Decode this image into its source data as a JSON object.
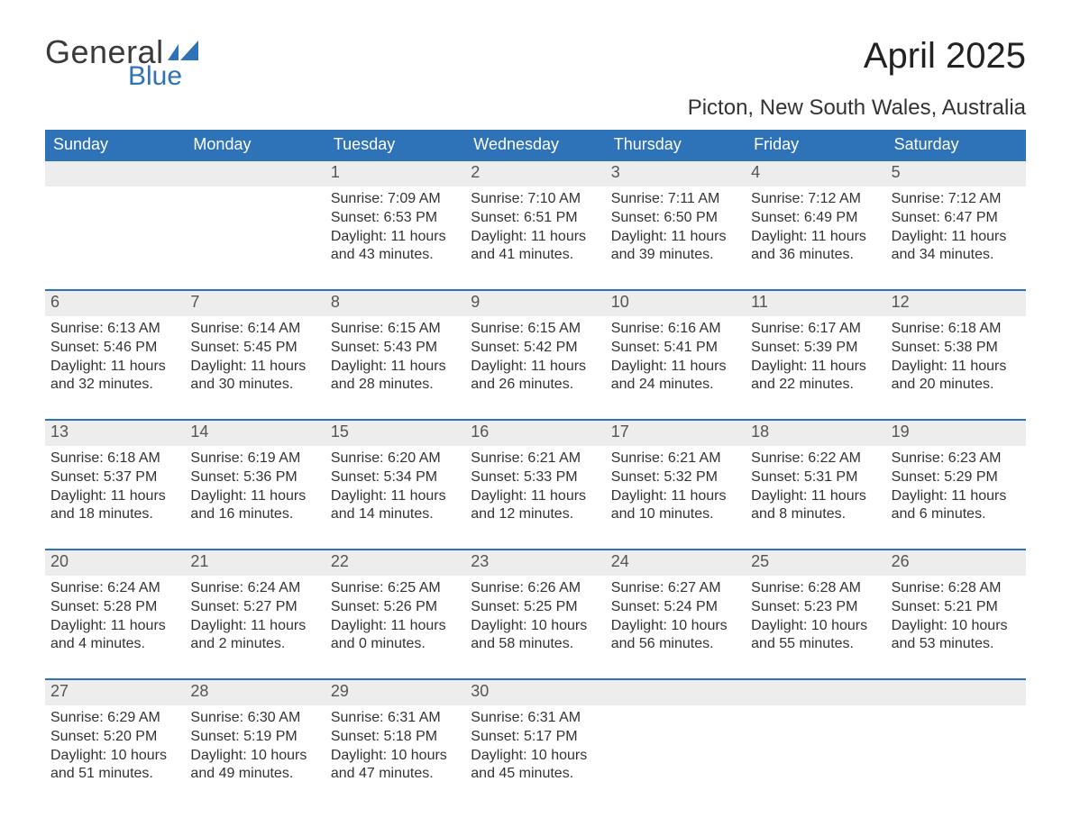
{
  "logo": {
    "text1": "General",
    "text2": "Blue",
    "color_general": "#3a3a3a",
    "color_blue": "#2e72b8"
  },
  "title": "April 2025",
  "subtitle": "Picton, New South Wales, Australia",
  "header_bg": "#2e72b8",
  "header_text_color": "#ffffff",
  "strip_bg": "#ededed",
  "strip_border": "#2e72b8",
  "day_names": [
    "Sunday",
    "Monday",
    "Tuesday",
    "Wednesday",
    "Thursday",
    "Friday",
    "Saturday"
  ],
  "weeks": [
    [
      null,
      null,
      {
        "date": "1",
        "sunrise": "7:09 AM",
        "sunset": "6:53 PM",
        "daylight": "11 hours and 43 minutes."
      },
      {
        "date": "2",
        "sunrise": "7:10 AM",
        "sunset": "6:51 PM",
        "daylight": "11 hours and 41 minutes."
      },
      {
        "date": "3",
        "sunrise": "7:11 AM",
        "sunset": "6:50 PM",
        "daylight": "11 hours and 39 minutes."
      },
      {
        "date": "4",
        "sunrise": "7:12 AM",
        "sunset": "6:49 PM",
        "daylight": "11 hours and 36 minutes."
      },
      {
        "date": "5",
        "sunrise": "7:12 AM",
        "sunset": "6:47 PM",
        "daylight": "11 hours and 34 minutes."
      }
    ],
    [
      {
        "date": "6",
        "sunrise": "6:13 AM",
        "sunset": "5:46 PM",
        "daylight": "11 hours and 32 minutes."
      },
      {
        "date": "7",
        "sunrise": "6:14 AM",
        "sunset": "5:45 PM",
        "daylight": "11 hours and 30 minutes."
      },
      {
        "date": "8",
        "sunrise": "6:15 AM",
        "sunset": "5:43 PM",
        "daylight": "11 hours and 28 minutes."
      },
      {
        "date": "9",
        "sunrise": "6:15 AM",
        "sunset": "5:42 PM",
        "daylight": "11 hours and 26 minutes."
      },
      {
        "date": "10",
        "sunrise": "6:16 AM",
        "sunset": "5:41 PM",
        "daylight": "11 hours and 24 minutes."
      },
      {
        "date": "11",
        "sunrise": "6:17 AM",
        "sunset": "5:39 PM",
        "daylight": "11 hours and 22 minutes."
      },
      {
        "date": "12",
        "sunrise": "6:18 AM",
        "sunset": "5:38 PM",
        "daylight": "11 hours and 20 minutes."
      }
    ],
    [
      {
        "date": "13",
        "sunrise": "6:18 AM",
        "sunset": "5:37 PM",
        "daylight": "11 hours and 18 minutes."
      },
      {
        "date": "14",
        "sunrise": "6:19 AM",
        "sunset": "5:36 PM",
        "daylight": "11 hours and 16 minutes."
      },
      {
        "date": "15",
        "sunrise": "6:20 AM",
        "sunset": "5:34 PM",
        "daylight": "11 hours and 14 minutes."
      },
      {
        "date": "16",
        "sunrise": "6:21 AM",
        "sunset": "5:33 PM",
        "daylight": "11 hours and 12 minutes."
      },
      {
        "date": "17",
        "sunrise": "6:21 AM",
        "sunset": "5:32 PM",
        "daylight": "11 hours and 10 minutes."
      },
      {
        "date": "18",
        "sunrise": "6:22 AM",
        "sunset": "5:31 PM",
        "daylight": "11 hours and 8 minutes."
      },
      {
        "date": "19",
        "sunrise": "6:23 AM",
        "sunset": "5:29 PM",
        "daylight": "11 hours and 6 minutes."
      }
    ],
    [
      {
        "date": "20",
        "sunrise": "6:24 AM",
        "sunset": "5:28 PM",
        "daylight": "11 hours and 4 minutes."
      },
      {
        "date": "21",
        "sunrise": "6:24 AM",
        "sunset": "5:27 PM",
        "daylight": "11 hours and 2 minutes."
      },
      {
        "date": "22",
        "sunrise": "6:25 AM",
        "sunset": "5:26 PM",
        "daylight": "11 hours and 0 minutes."
      },
      {
        "date": "23",
        "sunrise": "6:26 AM",
        "sunset": "5:25 PM",
        "daylight": "10 hours and 58 minutes."
      },
      {
        "date": "24",
        "sunrise": "6:27 AM",
        "sunset": "5:24 PM",
        "daylight": "10 hours and 56 minutes."
      },
      {
        "date": "25",
        "sunrise": "6:28 AM",
        "sunset": "5:23 PM",
        "daylight": "10 hours and 55 minutes."
      },
      {
        "date": "26",
        "sunrise": "6:28 AM",
        "sunset": "5:21 PM",
        "daylight": "10 hours and 53 minutes."
      }
    ],
    [
      {
        "date": "27",
        "sunrise": "6:29 AM",
        "sunset": "5:20 PM",
        "daylight": "10 hours and 51 minutes."
      },
      {
        "date": "28",
        "sunrise": "6:30 AM",
        "sunset": "5:19 PM",
        "daylight": "10 hours and 49 minutes."
      },
      {
        "date": "29",
        "sunrise": "6:31 AM",
        "sunset": "5:18 PM",
        "daylight": "10 hours and 47 minutes."
      },
      {
        "date": "30",
        "sunrise": "6:31 AM",
        "sunset": "5:17 PM",
        "daylight": "10 hours and 45 minutes."
      },
      null,
      null,
      null
    ]
  ],
  "labels": {
    "sunrise": "Sunrise: ",
    "sunset": "Sunset: ",
    "daylight": "Daylight: "
  }
}
